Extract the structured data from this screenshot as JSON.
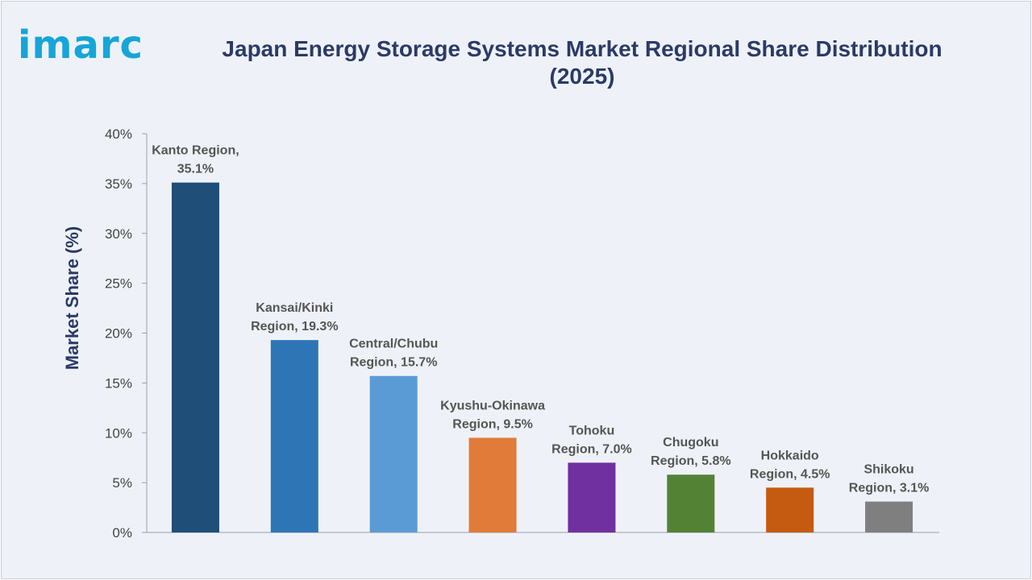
{
  "logo": {
    "text": "imarc"
  },
  "title": "Japan Energy Storage Systems Market Regional Share Distribution (2025)",
  "colors": {
    "title": "#2b3a67",
    "logo": "#17a5d8",
    "axis_label": "#2b3a67",
    "tick": "#444444",
    "data_label": "#555555"
  },
  "chart_data": {
    "type": "bar",
    "title": "Japan Energy Storage Systems Market Regional Share Distribution (2025)",
    "xlabel": "",
    "ylabel": "Market Share (%)",
    "ylim": [
      0,
      40
    ],
    "yticks": [
      0,
      5,
      10,
      15,
      20,
      25,
      30,
      35,
      40
    ],
    "ytick_labels": [
      "0%",
      "5%",
      "10%",
      "15%",
      "20%",
      "25%",
      "30%",
      "35%",
      "40%"
    ],
    "grid": false,
    "legend": "none",
    "categories": [
      "Kanto Region",
      "Kansai/Kinki Region",
      "Central/Chubu Region",
      "Kyushu-Okinawa Region",
      "Tohoku Region",
      "Chugoku Region",
      "Hokkaido Region",
      "Shikoku Region"
    ],
    "values": [
      35.1,
      19.3,
      15.7,
      9.5,
      7.0,
      5.8,
      4.5,
      3.1
    ],
    "bar_colors": [
      "#1f4e79",
      "#2e75b6",
      "#5b9bd5",
      "#e07b39",
      "#7030a0",
      "#548235",
      "#c55a11",
      "#7f7f7f"
    ],
    "data_labels": [
      [
        "Kanto Region,",
        "35.1%"
      ],
      [
        "Kansai/Kinki",
        "Region, 19.3%"
      ],
      [
        "Central/Chubu",
        "Region, 15.7%"
      ],
      [
        "Kyushu-Okinawa",
        "Region, 9.5%"
      ],
      [
        "Tohoku",
        "Region, 7.0%"
      ],
      [
        "Chugoku",
        "Region, 5.8%"
      ],
      [
        "Hokkaido",
        "Region, 4.5%"
      ],
      [
        "Shikoku",
        "Region, 3.1%"
      ]
    ]
  }
}
